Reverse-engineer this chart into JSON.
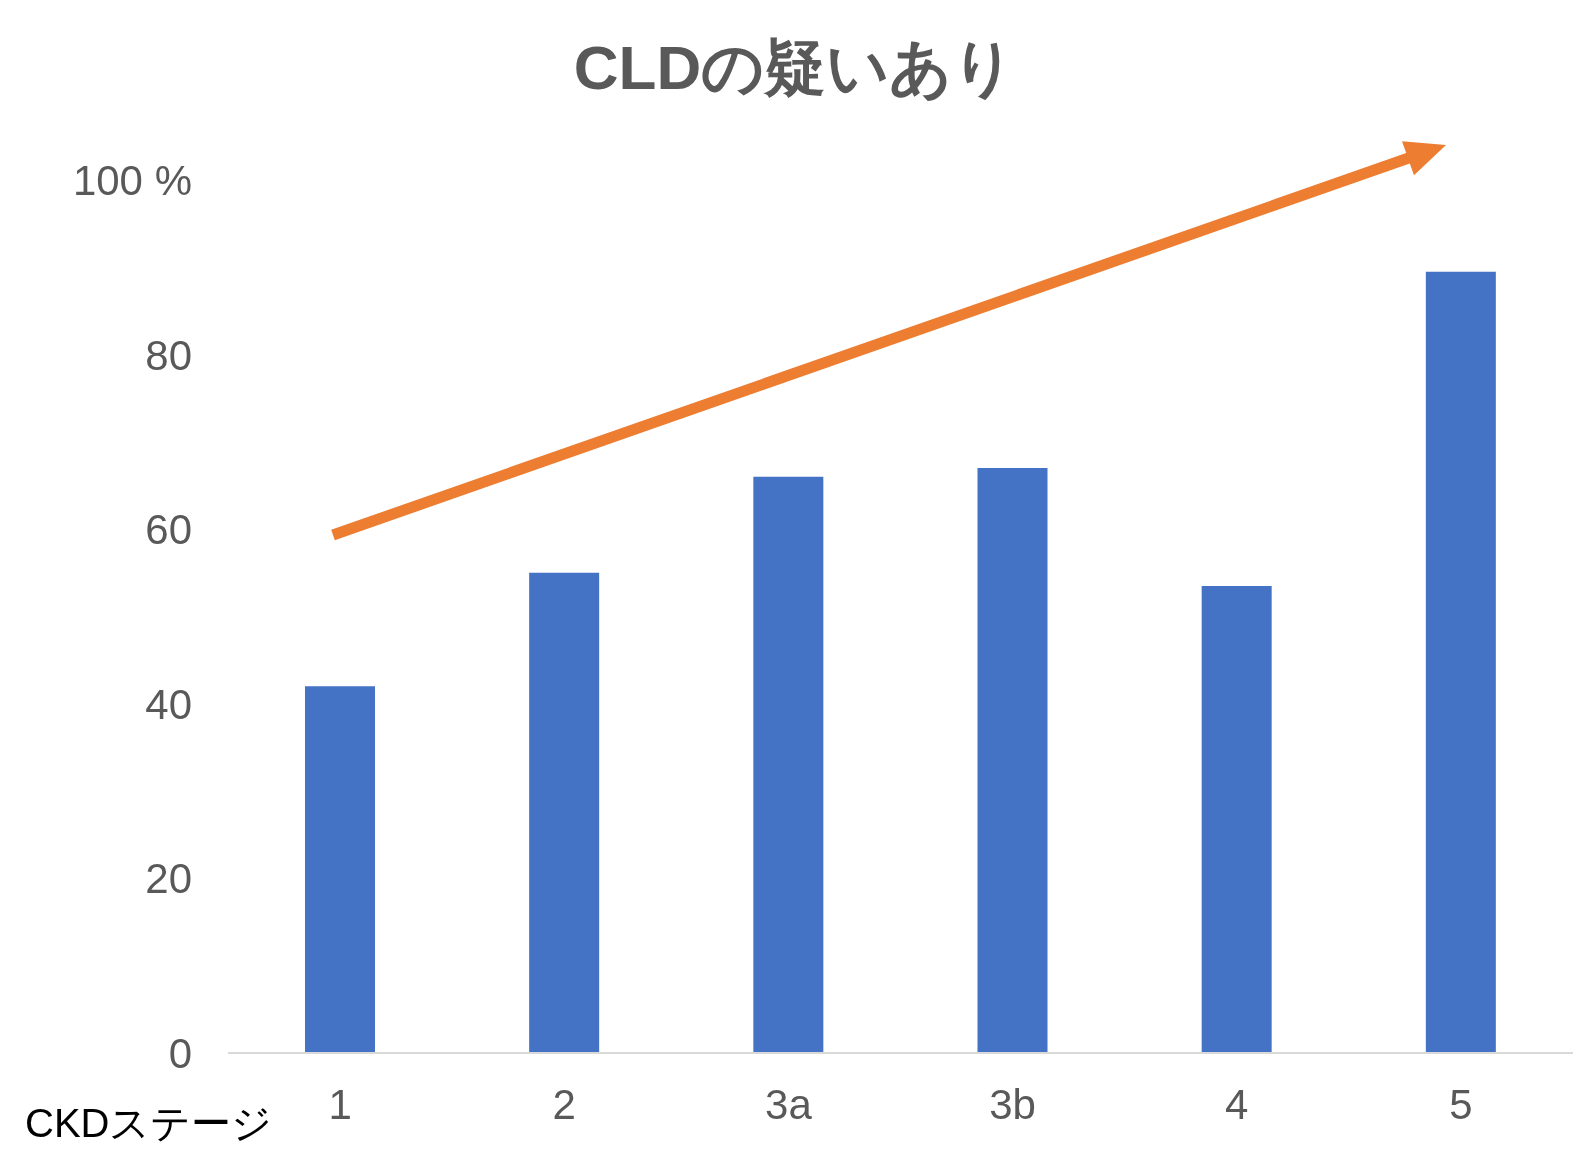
{
  "chart_data": {
    "type": "bar",
    "title": "CLDの疑いあり",
    "xlabel": "CKDステージ",
    "categories": [
      "1",
      "2",
      "3a",
      "3b",
      "4",
      "5"
    ],
    "values": [
      42,
      55,
      66,
      67,
      53.5,
      89.5
    ],
    "color": "#4472c4",
    "ylim": [
      0,
      100
    ],
    "yticks": [
      0,
      20,
      40,
      60,
      80,
      {
        "value": 100,
        "label": "100 %"
      }
    ],
    "grid": false,
    "legend": false
  }
}
